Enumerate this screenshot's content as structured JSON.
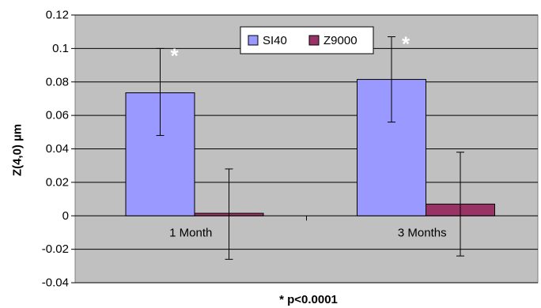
{
  "chart_data": {
    "type": "bar",
    "categories": [
      "1 Month",
      "3 Months"
    ],
    "series": [
      {
        "name": "SI40",
        "color": "#9999ff",
        "values": [
          0.0735,
          0.0815
        ],
        "error_low": [
          0.048,
          0.056
        ],
        "error_high": [
          0.1,
          0.107
        ]
      },
      {
        "name": "Z9000",
        "color": "#993366",
        "values": [
          0.0015,
          0.007
        ],
        "error_low": [
          -0.026,
          -0.024
        ],
        "error_high": [
          0.028,
          0.038
        ]
      }
    ],
    "annotations": [
      "*",
      "*"
    ],
    "xlabel": "",
    "ylabel": "Z(4,0) µm",
    "ylim": [
      -0.04,
      0.12
    ],
    "yticks": [
      "-0.04",
      "-0.02",
      "0",
      "0.02",
      "0.04",
      "0.06",
      "0.08",
      "0.1",
      "0.12"
    ],
    "footnote": "* p<0.0001",
    "legend_position": "top-center",
    "plot_background": "#c0c0c0",
    "grid": true
  }
}
